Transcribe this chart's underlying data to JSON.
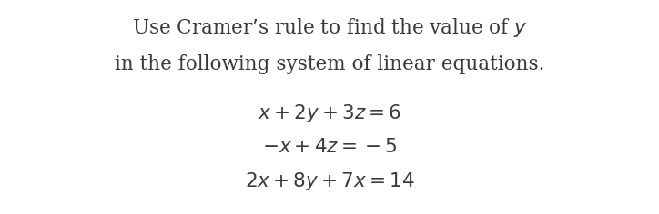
{
  "background_color": "#ffffff",
  "title_line1": "Use Cramer’s rule to find the value of $y$",
  "title_line2": "in the following system of linear equations.",
  "eq1": "$x + 2y + 3z = 6$",
  "eq2": "$- x + 4z = -5$",
  "eq3": "$2x + 8y + 7x = 14$",
  "title_fontsize": 15.5,
  "eq_fontsize": 15.5,
  "title_color": "#3a3a3a",
  "eq_color": "#3a3a3a"
}
